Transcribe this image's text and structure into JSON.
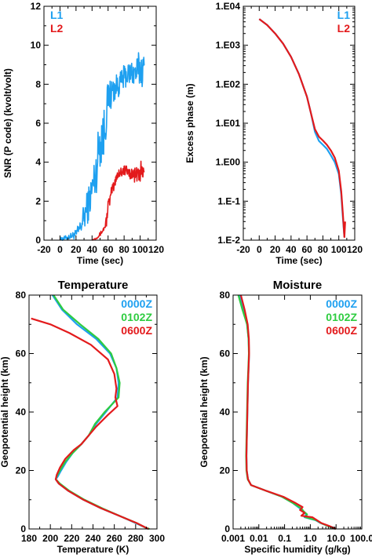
{
  "chart_data": [
    {
      "type": "line",
      "title": "",
      "xlabel": "Time (sec)",
      "ylabel": "SNR (P code) (kvolt/volt)",
      "xlim": [
        -20,
        120
      ],
      "ylim": [
        0,
        12
      ],
      "x_ticks": [
        "-20",
        "0",
        "20",
        "40",
        "60",
        "80",
        "100",
        "120"
      ],
      "y_ticks": [
        "0",
        "2",
        "4",
        "6",
        "8",
        "10",
        "12"
      ],
      "legend_position": "top-left",
      "series": [
        {
          "name": "L1",
          "color": "#1ea0f0",
          "x": [
            0,
            10,
            20,
            25,
            30,
            35,
            40,
            45,
            50,
            55,
            60,
            65,
            70,
            75,
            80,
            85,
            90,
            95,
            100,
            105
          ],
          "y": [
            0.05,
            0.15,
            0.3,
            0.6,
            1.2,
            1.8,
            2.6,
            3.5,
            5.2,
            5.5,
            7.3,
            7.6,
            7.9,
            8.0,
            8.4,
            8.5,
            8.6,
            8.6,
            8.8,
            8.7
          ],
          "noise": [
            0.08,
            0.12,
            0.25,
            0.4,
            0.7,
            0.9,
            1.0,
            1.2,
            1.5,
            1.4,
            0.9,
            0.8,
            0.6,
            0.6,
            0.6,
            0.6,
            0.7,
            0.8,
            1.0,
            0.8
          ]
        },
        {
          "name": "L2",
          "color": "#e31a1c",
          "x": [
            40,
            45,
            50,
            55,
            58,
            60,
            62,
            65,
            68,
            70,
            75,
            80,
            85,
            90,
            95,
            100,
            105
          ],
          "y": [
            0,
            0.1,
            0.3,
            0.6,
            1.0,
            1.8,
            2.0,
            2.6,
            2.8,
            3.3,
            3.5,
            3.6,
            3.5,
            3.4,
            3.3,
            3.5,
            3.4
          ],
          "noise": [
            0,
            0.05,
            0.1,
            0.15,
            0.3,
            0.3,
            0.3,
            0.3,
            0.3,
            0.35,
            0.3,
            0.3,
            0.3,
            0.3,
            0.4,
            0.6,
            0.5
          ]
        }
      ]
    },
    {
      "type": "line",
      "title": "",
      "xlabel": "Time (sec)",
      "ylabel": "Excess phase (m)",
      "xlim": [
        -20,
        120
      ],
      "ylim": [
        0.01,
        10000
      ],
      "y_scale": "log",
      "x_ticks": [
        "-20",
        "0",
        "20",
        "40",
        "60",
        "80",
        "100",
        "120"
      ],
      "y_ticks": [
        "1.E-2",
        "1.E-1",
        "1.E00",
        "1.E01",
        "1.E02",
        "1.E03",
        "1.E04"
      ],
      "legend_position": "top-right",
      "series": [
        {
          "name": "L1",
          "color": "#1ea0f0",
          "x": [
            0,
            10,
            20,
            30,
            40,
            50,
            60,
            65,
            70,
            75,
            80,
            85,
            90,
            95,
            100,
            103,
            105,
            107
          ],
          "y": [
            4700,
            3300,
            2000,
            1100,
            500,
            180,
            48,
            18,
            6.0,
            3.5,
            2.8,
            2.2,
            1.5,
            1.0,
            0.5,
            0.15,
            0.04,
            0.012
          ]
        },
        {
          "name": "L2",
          "color": "#e31a1c",
          "x": [
            0,
            10,
            20,
            30,
            40,
            50,
            60,
            65,
            70,
            75,
            80,
            85,
            90,
            95,
            100,
            103,
            105,
            107,
            108
          ],
          "y": [
            4700,
            3300,
            2000,
            1100,
            500,
            180,
            48,
            18,
            7.0,
            4.5,
            3.6,
            2.8,
            2.0,
            1.3,
            0.6,
            0.18,
            0.05,
            0.012,
            0.03
          ]
        }
      ]
    },
    {
      "type": "line",
      "title": "Temperature",
      "xlabel": "Temperature (K)",
      "ylabel": "Geopotential height (km)",
      "xlim": [
        180,
        300
      ],
      "ylim": [
        0,
        80
      ],
      "x_ticks": [
        "180",
        "200",
        "220",
        "240",
        "260",
        "280",
        "300"
      ],
      "y_ticks": [
        "0",
        "20",
        "40",
        "60",
        "80"
      ],
      "legend_position": "top-right",
      "series": [
        {
          "name": "0000Z",
          "color": "#1ea0f0",
          "x": [
            202,
            211,
            225,
            243,
            256,
            262,
            264,
            263,
            252,
            243,
            236,
            229,
            221,
            215,
            210,
            207,
            205,
            208,
            217,
            231,
            248,
            268,
            280,
            289,
            292
          ],
          "y": [
            80,
            75,
            70,
            65,
            60,
            55,
            50,
            45,
            40,
            36,
            32,
            29,
            26,
            23,
            20,
            18,
            17,
            15.5,
            13,
            10,
            7,
            4,
            2,
            0.5,
            0
          ]
        },
        {
          "name": "0102Z",
          "color": "#2ecc40",
          "x": [
            203,
            212,
            228,
            245,
            257,
            262,
            265,
            264,
            251,
            242,
            236,
            229,
            221,
            214,
            209,
            206,
            205,
            209,
            218,
            232,
            249,
            268,
            281,
            289,
            293
          ],
          "y": [
            80,
            75,
            70,
            65,
            60,
            55,
            50,
            45,
            40,
            36,
            32,
            29,
            26,
            23,
            20,
            18,
            17,
            15.5,
            13,
            10,
            7,
            4,
            2,
            0.5,
            0
          ]
        },
        {
          "name": "0600Z",
          "color": "#e31a1c",
          "x": [
            182,
            200,
            218,
            238,
            254,
            260,
            262,
            261,
            263,
            254,
            243,
            236,
            229,
            222,
            214,
            209,
            206,
            205,
            208,
            217,
            231,
            248,
            268,
            281,
            292
          ],
          "y": [
            72,
            70,
            67,
            63,
            58,
            53,
            48,
            45,
            42,
            39,
            35,
            32,
            29,
            27,
            24,
            21,
            18.5,
            17,
            15.5,
            13,
            10,
            7,
            4,
            2,
            0
          ]
        }
      ]
    },
    {
      "type": "line",
      "title": "Moisture",
      "xlabel": "Specific humidity (g/kg)",
      "ylabel": "Geopotential height (km)",
      "xlim": [
        0.001,
        100
      ],
      "x_scale": "log",
      "ylim": [
        0,
        80
      ],
      "x_ticks": [
        "0.001",
        "0.01",
        "0.1",
        "1.0",
        "10.0",
        "100.0"
      ],
      "y_ticks": [
        "0",
        "20",
        "40",
        "60",
        "80"
      ],
      "legend_position": "top-right",
      "series": [
        {
          "name": "0000Z",
          "color": "#1ea0f0",
          "x": [
            0.0018,
            0.0025,
            0.0035,
            0.004,
            0.0042,
            0.004,
            0.0038,
            0.0037,
            0.0036,
            0.0035,
            0.0034,
            0.0033,
            0.0034,
            0.0038,
            0.005,
            0.02,
            0.08,
            0.2,
            0.4,
            0.5,
            0.7,
            0.6,
            1.0,
            1.6,
            2.5,
            5,
            9
          ],
          "y": [
            80,
            75,
            70,
            65,
            60,
            55,
            50,
            45,
            40,
            35,
            30,
            25,
            20,
            17,
            15,
            13,
            11,
            9,
            7,
            6,
            5,
            4,
            3.5,
            3,
            2,
            1,
            0
          ]
        },
        {
          "name": "0102Z",
          "color": "#2ecc40",
          "x": [
            0.0016,
            0.0023,
            0.0035,
            0.004,
            0.0041,
            0.0039,
            0.0037,
            0.0036,
            0.0035,
            0.0034,
            0.0033,
            0.0032,
            0.0033,
            0.0037,
            0.005,
            0.02,
            0.08,
            0.2,
            0.45,
            0.55,
            0.75,
            0.65,
            1.05,
            1.7,
            2.6,
            5,
            9.5
          ],
          "y": [
            80,
            75,
            70,
            65,
            60,
            55,
            50,
            45,
            40,
            35,
            30,
            25,
            20,
            17,
            15,
            13,
            11,
            9,
            7,
            6,
            5,
            4,
            3.5,
            3,
            2,
            1,
            0
          ]
        },
        {
          "name": "0600Z",
          "color": "#e31a1c",
          "x": [
            0.002,
            0.0028,
            0.0037,
            0.0041,
            0.0042,
            0.004,
            0.0038,
            0.0037,
            0.0036,
            0.0035,
            0.0034,
            0.0033,
            0.0034,
            0.0038,
            0.005,
            0.02,
            0.09,
            0.25,
            0.5,
            0.4,
            0.6,
            0.45,
            1.2,
            1.8,
            2.7,
            5.5,
            10
          ],
          "y": [
            80,
            75,
            70,
            65,
            60,
            55,
            50,
            45,
            40,
            35,
            30,
            25,
            20,
            17,
            15,
            13,
            11,
            9,
            7.5,
            6.5,
            5.5,
            4.5,
            4,
            3,
            2,
            1,
            0
          ]
        }
      ]
    }
  ]
}
